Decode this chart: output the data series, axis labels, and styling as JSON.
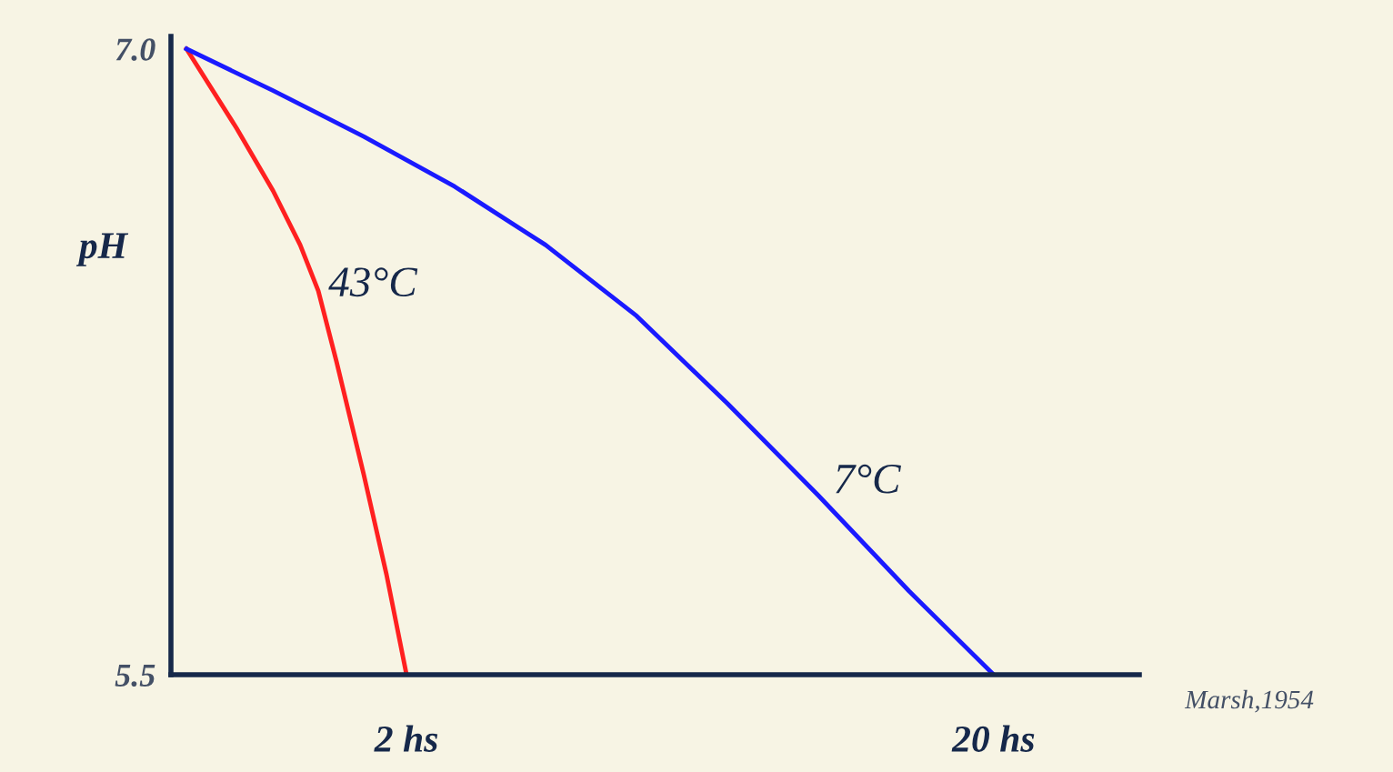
{
  "chart_data": {
    "type": "line",
    "ylabel": "pH",
    "log": "x",
    "xlim": [
      0.794,
      35.4
    ],
    "xticks": [
      {
        "value": 2,
        "label": "2 hs"
      },
      {
        "value": 20,
        "label": "20 hs"
      }
    ],
    "ylim": [
      5.5,
      7.03
    ],
    "yticks": [
      {
        "value": 7.0,
        "label": "7.0"
      },
      {
        "value": 5.5,
        "label": "5.5"
      }
    ],
    "grid": false,
    "legend": false,
    "marker": "none",
    "line_style": "solid",
    "series": [
      {
        "name": "43°C",
        "color": "#ff2020",
        "x": [
          0.844,
          1.027,
          1.185,
          1.318,
          1.415,
          1.52,
          1.691,
          1.849,
          2
        ],
        "values": [
          7.0,
          6.81,
          6.66,
          6.53,
          6.42,
          6.25,
          5.98,
          5.74,
          5.5
        ]
      },
      {
        "name": "7°C",
        "color": "#1a1aff",
        "x": [
          0.844,
          1.185,
          1.691,
          2.416,
          3.45,
          4.93,
          7.04,
          10.05,
          14.36,
          20
        ],
        "values": [
          7.0,
          6.9,
          6.79,
          6.67,
          6.53,
          6.36,
          6.15,
          5.93,
          5.7,
          5.5
        ]
      }
    ],
    "annotations": [
      "Marsh,1954"
    ]
  }
}
